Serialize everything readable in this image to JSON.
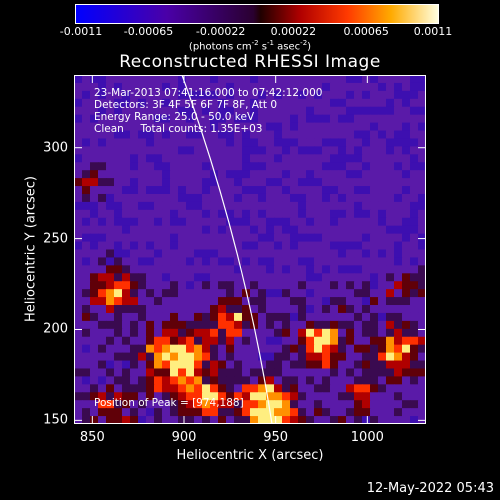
{
  "colorbar": {
    "tick_labels": [
      "-0.0011",
      "-0.00065",
      "-0.00022",
      "0.00022",
      "0.00065",
      "0.0011"
    ],
    "range": [
      -0.0011,
      0.0011
    ],
    "units_main": "(photons cm",
    "units_exp1": "-2",
    "units_s": " s",
    "units_exp2": "-1",
    "units_asec": " asec",
    "units_exp3": "-2",
    "units_close": ")"
  },
  "title": "Reconstructed RHESSI Image",
  "info_lines": [
    "23-Mar-2013 07:41:16.000 to 07:42:12.000",
    "Detectors: 3F 4F 5F 6F 7F 8F, Att 0",
    "Energy Range: 25.0 - 50.0 keV",
    "Clean     Total counts: 1.35E+03"
  ],
  "peak_label": "Position of Peak = [974,188]",
  "axes": {
    "xlabel": "Heliocentric X (arcsec)",
    "ylabel": "Heliocentric Y (arcsec)",
    "xlim": [
      840,
      1032
    ],
    "ylim": [
      148,
      340
    ],
    "xticks": [
      850,
      900,
      950,
      1000
    ],
    "yticks": [
      150,
      200,
      250,
      300
    ]
  },
  "footer_timestamp": "12-May-2022 05:43"
}
